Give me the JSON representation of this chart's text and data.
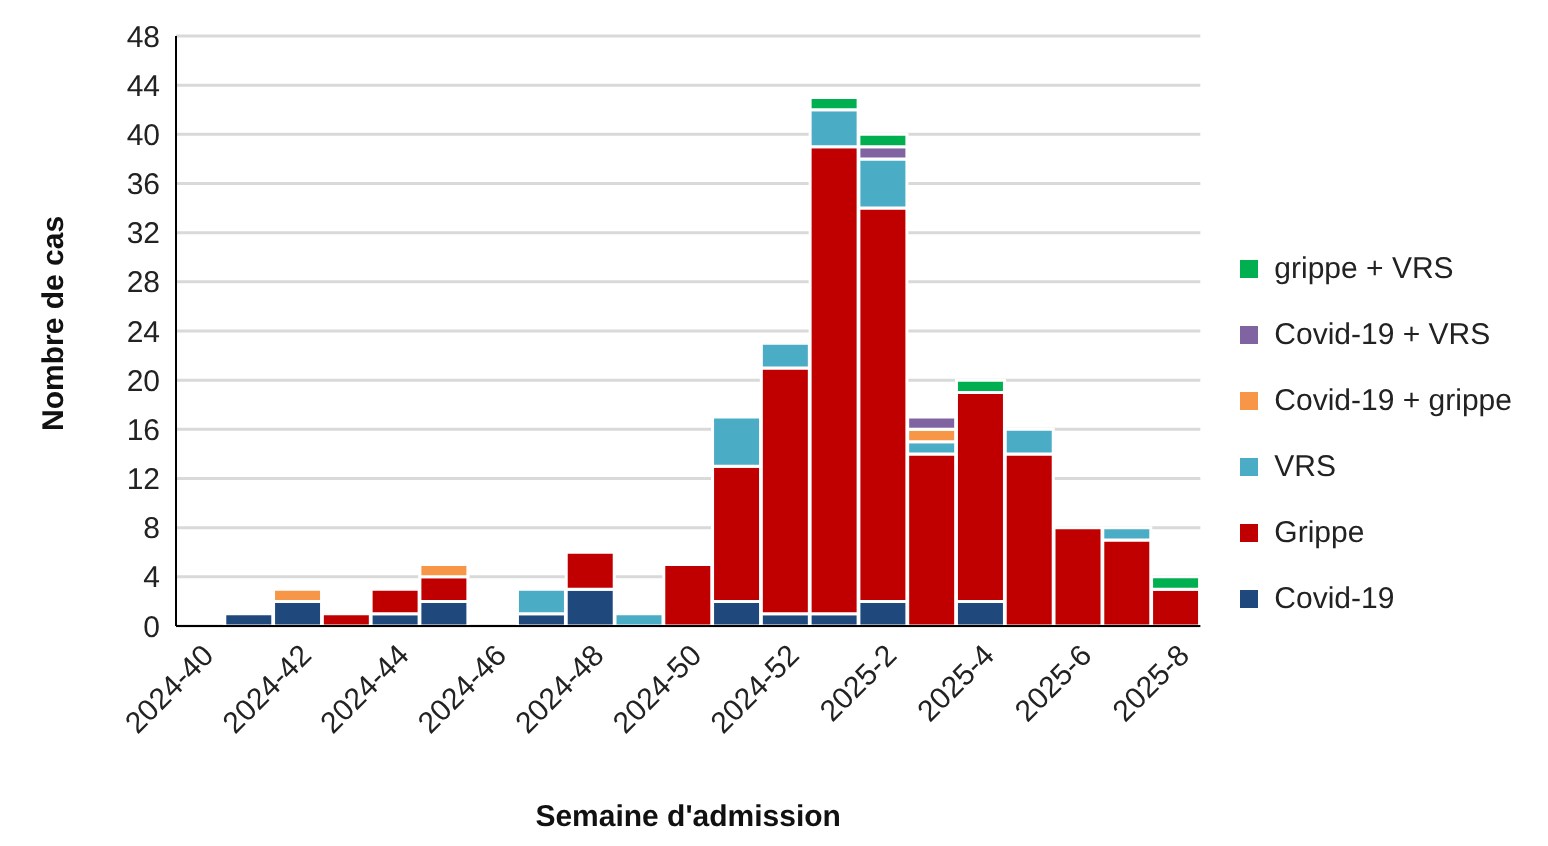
{
  "chart_data": {
    "type": "bar",
    "stacked": true,
    "xlabel": "Semaine d'admission",
    "ylabel": "Nombre de cas",
    "categories": [
      "2024-40",
      null,
      "2024-42",
      null,
      "2024-44",
      null,
      "2024-46",
      null,
      "2024-48",
      null,
      "2024-50",
      null,
      "2024-52",
      null,
      "2025-2",
      null,
      "2025-4",
      null,
      "2025-6",
      null,
      "2025-8"
    ],
    "series": [
      {
        "name": "Covid-19",
        "color": "#1f497d",
        "values": [
          0,
          1,
          2,
          0,
          1,
          2,
          0,
          1,
          3,
          0,
          0,
          2,
          1,
          1,
          2,
          0,
          2,
          0,
          0,
          0,
          0
        ]
      },
      {
        "name": "Grippe",
        "color": "#c00000",
        "values": [
          0,
          0,
          0,
          1,
          2,
          2,
          0,
          0,
          3,
          0,
          5,
          11,
          20,
          38,
          32,
          14,
          17,
          14,
          8,
          7,
          3
        ]
      },
      {
        "name": "VRS",
        "color": "#4bacc6",
        "values": [
          0,
          0,
          0,
          0,
          0,
          0,
          0,
          2,
          0,
          1,
          0,
          4,
          2,
          3,
          4,
          1,
          0,
          2,
          0,
          1,
          0
        ]
      },
      {
        "name": "Covid-19 + grippe",
        "color": "#f79646",
        "values": [
          0,
          0,
          1,
          0,
          0,
          1,
          0,
          0,
          0,
          0,
          0,
          0,
          0,
          0,
          0,
          1,
          0,
          0,
          0,
          0,
          0
        ]
      },
      {
        "name": "Covid-19 + VRS",
        "color": "#8064a2",
        "values": [
          0,
          0,
          0,
          0,
          0,
          0,
          0,
          0,
          0,
          0,
          0,
          0,
          0,
          0,
          1,
          1,
          0,
          0,
          0,
          0,
          0
        ]
      },
      {
        "name": "grippe + VRS",
        "color": "#00b050",
        "values": [
          0,
          0,
          0,
          0,
          0,
          0,
          0,
          0,
          0,
          0,
          0,
          0,
          0,
          1,
          1,
          0,
          1,
          0,
          0,
          0,
          1
        ]
      }
    ],
    "ylim": [
      0,
      48
    ],
    "yticks": [
      0,
      4,
      8,
      12,
      16,
      20,
      24,
      28,
      32,
      36,
      40,
      44,
      48
    ],
    "grid": "y",
    "legend": "right"
  }
}
